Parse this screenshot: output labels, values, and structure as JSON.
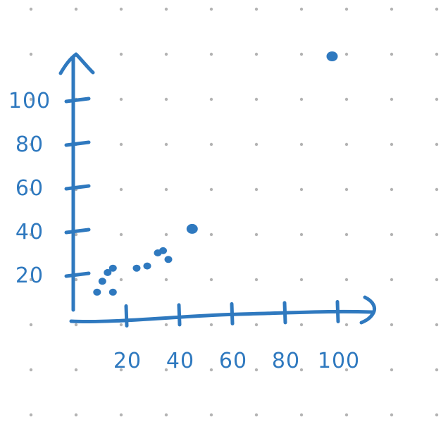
{
  "colors": {
    "ink": "#2f79bf",
    "grid_dot": "#b3b3b3",
    "background": "#ffffff"
  },
  "chart_data": {
    "type": "scatter",
    "title": "",
    "xlabel": "",
    "ylabel": "",
    "xlim": [
      0,
      110
    ],
    "ylim": [
      0,
      110
    ],
    "x_ticks": [
      20,
      40,
      60,
      80,
      100
    ],
    "y_ticks": [
      20,
      40,
      60,
      80,
      100
    ],
    "x_tick_labels": [
      "20",
      "40",
      "60",
      "80",
      "100"
    ],
    "y_tick_labels": [
      "20",
      "40",
      "60",
      "80",
      "100"
    ],
    "grid": false,
    "legend": false,
    "points": [
      {
        "x": 9,
        "y": 12
      },
      {
        "x": 11,
        "y": 17
      },
      {
        "x": 13,
        "y": 21
      },
      {
        "x": 15,
        "y": 12
      },
      {
        "x": 15,
        "y": 23
      },
      {
        "x": 24,
        "y": 23
      },
      {
        "x": 28,
        "y": 24
      },
      {
        "x": 32,
        "y": 30
      },
      {
        "x": 34,
        "y": 31
      },
      {
        "x": 36,
        "y": 27
      },
      {
        "x": 45,
        "y": 41
      },
      {
        "x": 98,
        "y": 120
      }
    ]
  }
}
